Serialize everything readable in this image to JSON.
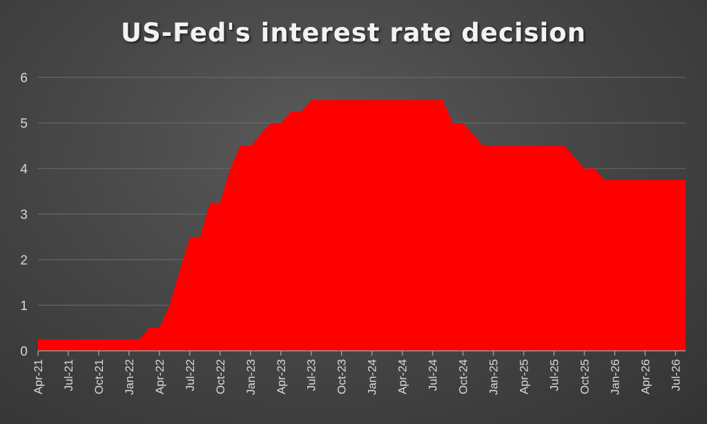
{
  "chart_data": {
    "type": "area",
    "title": "US-Fed's interest rate decision",
    "xlabel": "",
    "ylabel": "",
    "ylim": [
      0,
      6
    ],
    "yticks": [
      0,
      1,
      2,
      3,
      4,
      5,
      6
    ],
    "xlim": [
      "2021-04",
      "2026-08"
    ],
    "xticks": [
      "Apr-21",
      "Jul-21",
      "Oct-21",
      "Jan-22",
      "Apr-22",
      "Jul-22",
      "Oct-22",
      "Jan-23",
      "Apr-23",
      "Jul-23",
      "Oct-23",
      "Jan-24",
      "Apr-24",
      "Jul-24",
      "Oct-24",
      "Jan-25",
      "Apr-25",
      "Jul-25",
      "Oct-25",
      "Jan-26",
      "Apr-26",
      "Jul-26"
    ],
    "grid": true,
    "legend": "none",
    "colors": {
      "fill": "#ff0000",
      "grid": "#6e6e6e",
      "axis": "#9a9a9a",
      "text": "#d9d9d9"
    },
    "series": [
      {
        "x": [
          "2021-04",
          "2021-05",
          "2021-06",
          "2021-07",
          "2021-08",
          "2021-09",
          "2021-10",
          "2021-11",
          "2021-12",
          "2022-01",
          "2022-02",
          "2022-03",
          "2022-04",
          "2022-05",
          "2022-06",
          "2022-07",
          "2022-08",
          "2022-09",
          "2022-10",
          "2022-11",
          "2022-12",
          "2023-01",
          "2023-02",
          "2023-03",
          "2023-04",
          "2023-05",
          "2023-06",
          "2023-07",
          "2023-08",
          "2023-09",
          "2023-10",
          "2023-11",
          "2023-12",
          "2024-01",
          "2024-02",
          "2024-03",
          "2024-04",
          "2024-05",
          "2024-06",
          "2024-07",
          "2024-08",
          "2024-09",
          "2024-10",
          "2024-11",
          "2024-12",
          "2025-01",
          "2025-02",
          "2025-03",
          "2025-04",
          "2025-05",
          "2025-06",
          "2025-07",
          "2025-08",
          "2025-09",
          "2025-10",
          "2025-11",
          "2025-12",
          "2026-01",
          "2026-02",
          "2026-03",
          "2026-04",
          "2026-05",
          "2026-06",
          "2026-07",
          "2026-08"
        ],
        "values": [
          0.25,
          0.25,
          0.25,
          0.25,
          0.25,
          0.25,
          0.25,
          0.25,
          0.25,
          0.25,
          0.25,
          0.5,
          0.5,
          1.0,
          1.75,
          2.5,
          2.5,
          3.25,
          3.25,
          4.0,
          4.5,
          4.5,
          4.75,
          5.0,
          5.0,
          5.25,
          5.25,
          5.5,
          5.5,
          5.5,
          5.5,
          5.5,
          5.5,
          5.5,
          5.5,
          5.5,
          5.5,
          5.5,
          5.5,
          5.5,
          5.5,
          5.0,
          5.0,
          4.75,
          4.5,
          4.5,
          4.5,
          4.5,
          4.5,
          4.5,
          4.5,
          4.5,
          4.5,
          4.25,
          4.0,
          4.0,
          3.75,
          3.75,
          3.75,
          3.75,
          3.75,
          3.75,
          3.75,
          3.75,
          3.75
        ]
      }
    ]
  }
}
